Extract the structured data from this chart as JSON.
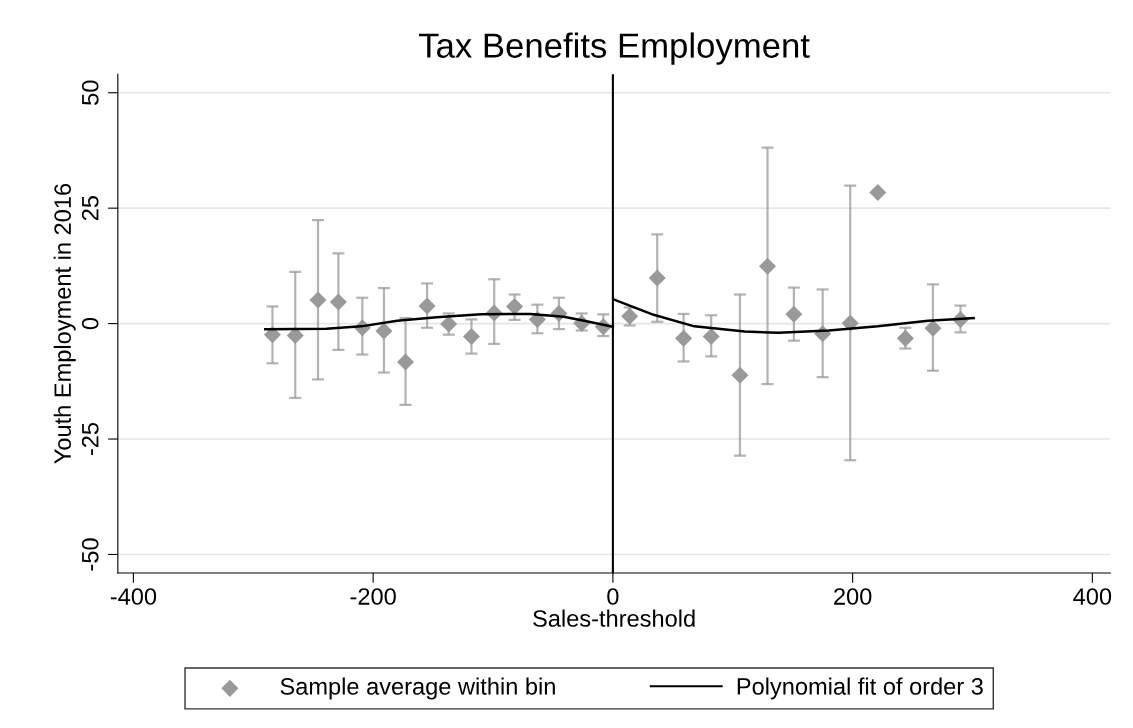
{
  "chart_data": {
    "type": "scatter",
    "title": "Tax Benefits Employment",
    "xlabel": "Sales-threshold",
    "ylabel": "Youth Employment in 2016",
    "xlim": [
      -413,
      415
    ],
    "ylim": [
      -54,
      54
    ],
    "xticks": [
      -400,
      -200,
      0,
      200,
      400
    ],
    "yticks": [
      -50,
      -25,
      0,
      25,
      50
    ],
    "grid": "y",
    "legend": "bottom",
    "marker": "diamond",
    "ref_lines": [
      {
        "axis": "x",
        "value": 0,
        "color": "#000000"
      }
    ],
    "series": [
      {
        "name": "Sample average within bin",
        "color": "#999999",
        "x": [
          -284,
          -265,
          -246,
          -229,
          -209,
          -191,
          -173,
          -155,
          -137,
          -118,
          -99,
          -82,
          -63,
          -45,
          -26,
          -8,
          14,
          37,
          59,
          82,
          106,
          129,
          151,
          175,
          198,
          221,
          244,
          267,
          290
        ],
        "values": [
          -2.4,
          -2.6,
          5.1,
          4.7,
          -0.9,
          -1.6,
          -8.3,
          3.8,
          -0.1,
          -2.8,
          2.3,
          3.7,
          0.9,
          2.2,
          0.1,
          -0.7,
          1.6,
          9.9,
          -3.2,
          -2.8,
          -11.2,
          12.4,
          2.0,
          -2.2,
          0.1,
          28.4,
          -3.2,
          -1.0,
          0.9
        ],
        "errors": [
          [
            -8.6,
            3.7
          ],
          [
            -16.1,
            11.2
          ],
          [
            -12.1,
            22.4
          ],
          [
            -5.7,
            15.2
          ],
          [
            -6.7,
            5.6
          ],
          [
            -10.6,
            7.7
          ],
          [
            -17.6,
            1.2
          ],
          [
            -0.9,
            8.7
          ],
          [
            -2.4,
            2.2
          ],
          [
            -6.5,
            0.9
          ],
          [
            -4.4,
            9.6
          ],
          [
            0.8,
            6.3
          ],
          [
            -2.1,
            4.1
          ],
          [
            -1.2,
            5.6
          ],
          [
            -1.5,
            2.2
          ],
          [
            -2.7,
            2.0
          ],
          [
            -0.4,
            3.5
          ],
          [
            0.4,
            19.3
          ],
          [
            -8.2,
            2.1
          ],
          [
            -7.1,
            1.8
          ],
          [
            -28.6,
            6.3
          ],
          [
            -13.1,
            38.1
          ],
          [
            -3.7,
            7.8
          ],
          [
            -11.6,
            7.4
          ],
          [
            -29.6,
            29.9
          ],
          null,
          [
            -5.4,
            -0.9
          ],
          [
            -10.2,
            8.5
          ],
          [
            -1.9,
            3.9
          ]
        ]
      },
      {
        "name": "Polynomial fit of order 3",
        "type": "line",
        "color": "#000000",
        "marker": "none",
        "line_style": "solid",
        "x": [
          -290,
          -239,
          -210,
          -180,
          -147,
          -110,
          -69,
          -41,
          -24,
          0,
          null,
          1,
          34,
          68,
          110,
          138,
          180,
          221,
          263,
          301
        ],
        "values": [
          -1.2,
          -1.1,
          -0.6,
          0.6,
          1.4,
          2.0,
          2.1,
          1.5,
          0.6,
          -0.7,
          null,
          5.2,
          1.9,
          -0.6,
          -1.7,
          -2.0,
          -1.5,
          -0.6,
          0.6,
          1.2
        ]
      }
    ]
  }
}
